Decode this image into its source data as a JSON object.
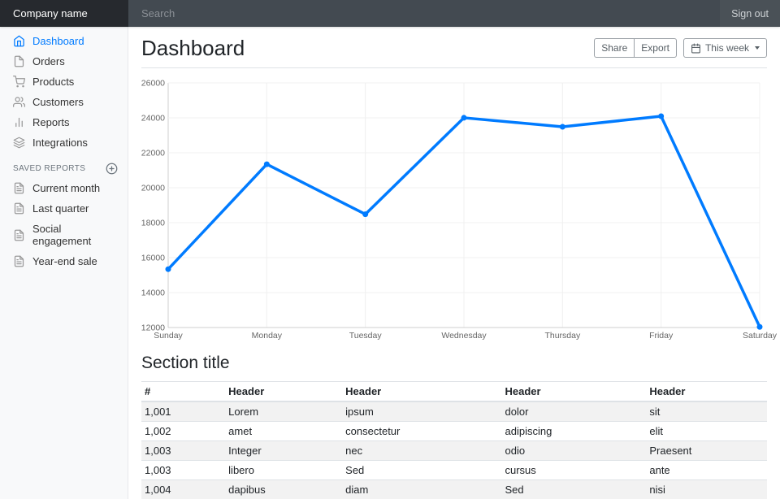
{
  "colors": {
    "accent": "#007bff",
    "navbar_bg": "#4a5157",
    "brand_bg": "#26292e",
    "sidebar_bg": "#f8f9fa"
  },
  "navbar": {
    "brand": "Company name",
    "search_placeholder": "Search",
    "sign_out": "Sign out"
  },
  "sidebar": {
    "items": [
      {
        "label": "Dashboard",
        "icon": "home",
        "active": true
      },
      {
        "label": "Orders",
        "icon": "file",
        "active": false
      },
      {
        "label": "Products",
        "icon": "shopping-cart",
        "active": false
      },
      {
        "label": "Customers",
        "icon": "users",
        "active": false
      },
      {
        "label": "Reports",
        "icon": "bar-chart-2",
        "active": false
      },
      {
        "label": "Integrations",
        "icon": "layers",
        "active": false
      }
    ],
    "saved_reports_heading": "SAVED REPORTS",
    "add_icon": "plus-circle",
    "report_icon": "file-text",
    "reports": [
      "Current month",
      "Last quarter",
      "Social engagement",
      "Year-end sale"
    ]
  },
  "main": {
    "title": "Dashboard",
    "toolbar": {
      "share": "Share",
      "export": "Export",
      "period": "This week",
      "period_icon": "calendar"
    },
    "section_title": "Section title"
  },
  "chart_data": {
    "type": "line",
    "categories": [
      "Sunday",
      "Monday",
      "Tuesday",
      "Wednesday",
      "Thursday",
      "Friday",
      "Saturday"
    ],
    "values": [
      15339,
      21345,
      18483,
      24003,
      23489,
      24092,
      12034
    ],
    "title": "",
    "xlabel": "",
    "ylabel": "",
    "ylim": [
      12000,
      26000
    ],
    "ytick_step": 2000,
    "grid": true,
    "legend": "none",
    "line_color": "#007bff"
  },
  "table": {
    "headers": [
      "#",
      "Header",
      "Header",
      "Header",
      "Header"
    ],
    "rows": [
      [
        "1,001",
        "Lorem",
        "ipsum",
        "dolor",
        "sit"
      ],
      [
        "1,002",
        "amet",
        "consectetur",
        "adipiscing",
        "elit"
      ],
      [
        "1,003",
        "Integer",
        "nec",
        "odio",
        "Praesent"
      ],
      [
        "1,003",
        "libero",
        "Sed",
        "cursus",
        "ante"
      ],
      [
        "1,004",
        "dapibus",
        "diam",
        "Sed",
        "nisi"
      ]
    ]
  }
}
